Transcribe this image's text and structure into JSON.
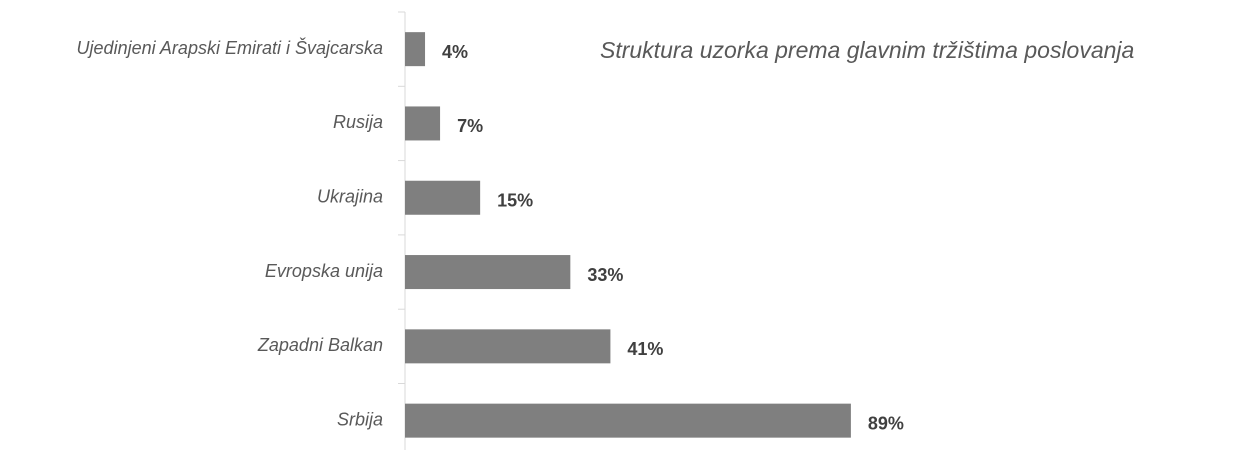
{
  "chart_data": {
    "type": "barh",
    "title": "Struktura uzorka prema glavnim tržištima poslovanja",
    "categories": [
      "Ujedinjeni Arapski Emirati i Švajcarska",
      "Rusija",
      "Ukrajina",
      "Evropska unija",
      "Zapadni Balkan",
      "Srbija"
    ],
    "values": [
      4,
      7,
      15,
      33,
      41,
      89
    ],
    "value_labels": [
      "4%",
      "7%",
      "15%",
      "33%",
      "41%",
      "89%"
    ],
    "color": "#7f7f7f"
  }
}
